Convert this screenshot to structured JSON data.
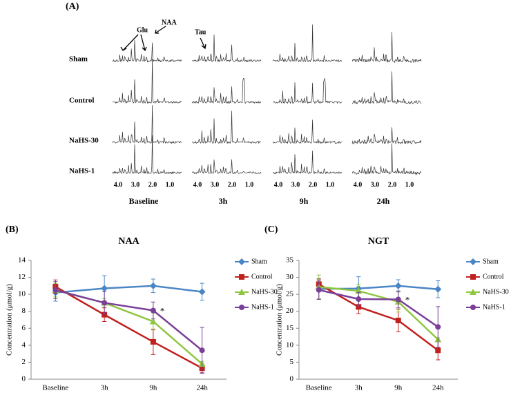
{
  "panel_a": {
    "label": "(A)",
    "rows": [
      "Sham",
      "Control",
      "NaHS-30",
      "NaHS-1"
    ],
    "columns": [
      "Baseline",
      "3h",
      "9h",
      "24h"
    ],
    "ppm_ticks": [
      "4.0",
      "3.0",
      "2.0",
      "1.0"
    ],
    "annotations": {
      "glu": "Glu",
      "naa": "NAA",
      "tau": "Tau"
    }
  },
  "chart_data": [
    {
      "type": "line",
      "panel_label": "(B)",
      "title": "NAA",
      "ylabel": "Concentration (μmol/g)",
      "categories": [
        "Baseline",
        "3h",
        "9h",
        "24h"
      ],
      "ylim": [
        0,
        14
      ],
      "yticks": [
        0,
        2,
        4,
        6,
        8,
        10,
        12,
        14
      ],
      "legend": "right",
      "annotation": "*",
      "series": [
        {
          "name": "Sham",
          "color": "#4a86c5",
          "marker": "diamond",
          "values": [
            10.2,
            10.7,
            11.0,
            10.3
          ],
          "errors": [
            1.0,
            1.5,
            0.8,
            1.0
          ]
        },
        {
          "name": "Control",
          "color": "#c0201e",
          "marker": "square",
          "values": [
            10.9,
            7.6,
            4.4,
            1.3
          ],
          "errors": [
            0.8,
            0.8,
            1.5,
            0.5
          ]
        },
        {
          "name": "NaHS-30",
          "color": "#8fc640",
          "marker": "triangle",
          "values": [
            10.5,
            9.0,
            6.8,
            1.8
          ],
          "errors": [
            0.8,
            0.5,
            1.0,
            0.3
          ]
        },
        {
          "name": "NaHS-1",
          "color": "#7a3f99",
          "marker": "circle",
          "values": [
            10.5,
            9.0,
            8.1,
            3.4
          ],
          "errors": [
            1.0,
            1.3,
            1.0,
            2.7
          ]
        }
      ]
    },
    {
      "type": "line",
      "panel_label": "(C)",
      "title": "NGT",
      "ylabel": "Concentration (μmol/g)",
      "categories": [
        "Baseline",
        "3h",
        "9h",
        "24h"
      ],
      "ylim": [
        0,
        35
      ],
      "yticks": [
        0,
        5,
        10,
        15,
        20,
        25,
        30,
        35
      ],
      "legend": "right",
      "annotation": "*",
      "series": [
        {
          "name": "Sham",
          "color": "#4a86c5",
          "marker": "diamond",
          "values": [
            26.6,
            26.7,
            27.5,
            26.5
          ],
          "errors": [
            3.0,
            3.5,
            1.8,
            2.5
          ]
        },
        {
          "name": "Control",
          "color": "#c0201e",
          "marker": "square",
          "values": [
            28.0,
            21.3,
            17.3,
            8.5
          ],
          "errors": [
            1.5,
            2.0,
            3.3,
            2.8
          ]
        },
        {
          "name": "NaHS-30",
          "color": "#8fc640",
          "marker": "triangle",
          "values": [
            27.2,
            26.0,
            22.8,
            11.7
          ],
          "errors": [
            3.5,
            2.0,
            3.0,
            0.5
          ]
        },
        {
          "name": "NaHS-1",
          "color": "#7a3f99",
          "marker": "circle",
          "values": [
            26.3,
            23.6,
            23.5,
            15.4
          ],
          "errors": [
            2.8,
            2.0,
            2.5,
            6.0
          ]
        }
      ]
    }
  ]
}
